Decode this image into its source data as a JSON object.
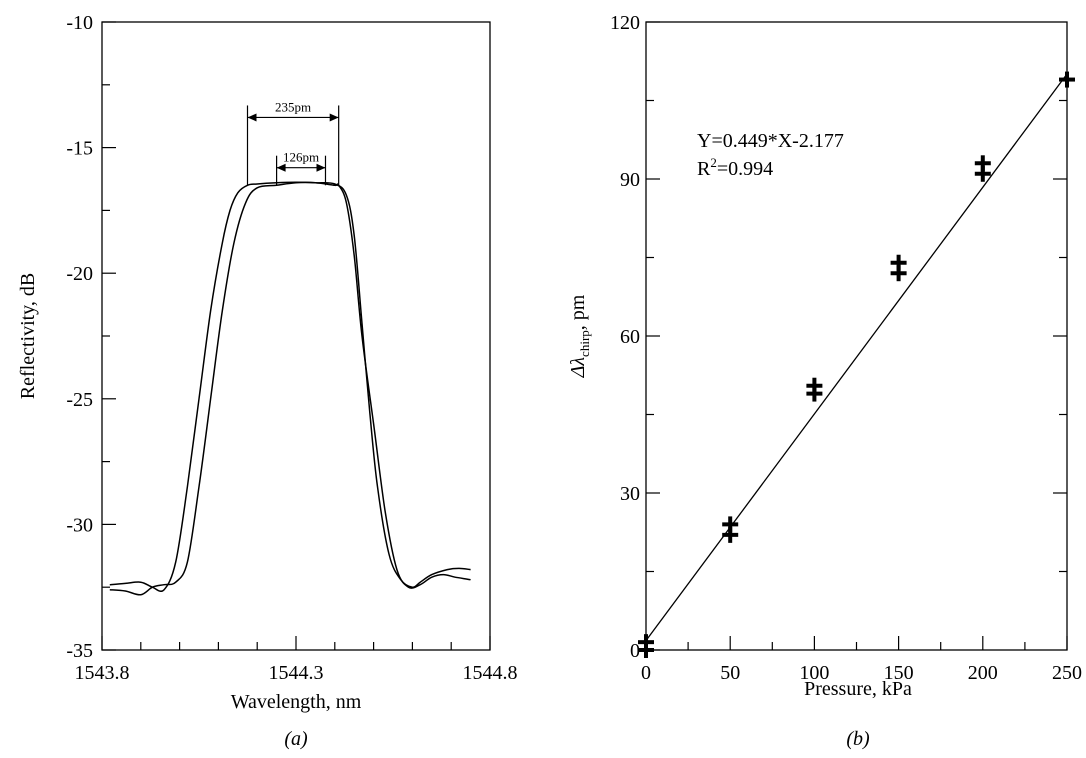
{
  "chart_data": [
    {
      "type": "line",
      "panel_label": "(a)",
      "xlabel": "Wavelength, nm",
      "ylabel": "Reflectivity, dB",
      "xlim": [
        1543.8,
        1544.8
      ],
      "ylim": [
        -35,
        -10
      ],
      "x_ticks": [
        "1543.8",
        "1544.3",
        "1544.8"
      ],
      "y_ticks": [
        "-35",
        "-30",
        "-25",
        "-20",
        "-15",
        "-10"
      ],
      "grid": false,
      "legend": "none",
      "annotations": [
        {
          "text": "235pm",
          "x_from": 1544.175,
          "x_to": 1544.41,
          "y": -13.8
        },
        {
          "text": "126pm",
          "x_from": 1544.25,
          "x_to": 1544.376,
          "y": -15.8
        }
      ],
      "series": [
        {
          "x": [
            1543.82,
            1543.86,
            1543.9,
            1543.93,
            1543.96,
            1543.99,
            1544.02,
            1544.05,
            1544.08,
            1544.11,
            1544.13,
            1544.15,
            1544.175,
            1544.2,
            1544.25,
            1544.3,
            1544.35,
            1544.4,
            1544.43,
            1544.45,
            1544.47,
            1544.49,
            1544.51,
            1544.54,
            1544.57,
            1544.6,
            1544.62,
            1544.65,
            1544.69,
            1544.72,
            1544.75
          ],
          "y": [
            -32.4,
            -32.35,
            -32.3,
            -32.5,
            -32.6,
            -31.5,
            -28.5,
            -25,
            -21.5,
            -18.8,
            -17.5,
            -16.8,
            -16.5,
            -16.45,
            -16.4,
            -16.38,
            -16.4,
            -16.45,
            -16.9,
            -18.5,
            -22,
            -25.5,
            -28.5,
            -31.2,
            -32.2,
            -32.5,
            -32.3,
            -32.0,
            -31.8,
            -31.75,
            -31.8
          ]
        },
        {
          "x": [
            1543.82,
            1543.86,
            1543.9,
            1543.93,
            1543.96,
            1543.99,
            1544.02,
            1544.05,
            1544.08,
            1544.11,
            1544.14,
            1544.17,
            1544.2,
            1544.25,
            1544.3,
            1544.35,
            1544.4,
            1544.41,
            1544.43,
            1544.45,
            1544.47,
            1544.5,
            1544.53,
            1544.56,
            1544.59,
            1544.62,
            1544.65,
            1544.68,
            1544.71,
            1544.75
          ],
          "y": [
            -32.6,
            -32.65,
            -32.8,
            -32.5,
            -32.4,
            -32.3,
            -31.5,
            -28.5,
            -25,
            -21.5,
            -18.8,
            -17.2,
            -16.6,
            -16.5,
            -16.4,
            -16.4,
            -16.5,
            -16.5,
            -17.2,
            -19.3,
            -22.5,
            -26,
            -29.5,
            -31.8,
            -32.5,
            -32.4,
            -32.1,
            -32.0,
            -32.1,
            -32.2
          ]
        }
      ]
    },
    {
      "type": "scatter",
      "panel_label": "(b)",
      "xlabel": "Pressure, kPa",
      "ylabel_main": "Δλ",
      "ylabel_sub": "chirp",
      "ylabel_tail": ", pm",
      "xlim": [
        0,
        250
      ],
      "ylim": [
        0,
        120
      ],
      "x_ticks": [
        "0",
        "50",
        "100",
        "150",
        "200",
        "250"
      ],
      "y_ticks": [
        "0",
        "30",
        "60",
        "90",
        "120"
      ],
      "grid": false,
      "legend": "none",
      "equation": "Y=0.449*X-2.177",
      "r2_prefix": "R",
      "r2_sup": "2",
      "r2_value": "=0.994",
      "fit": {
        "slope": 0.449,
        "intercept": -2.177,
        "x_from": 0,
        "x_to": 250
      },
      "points": [
        {
          "x": 0,
          "y": 0
        },
        {
          "x": 0,
          "y": 1.5
        },
        {
          "x": 50,
          "y": 22
        },
        {
          "x": 50,
          "y": 24
        },
        {
          "x": 100,
          "y": 49
        },
        {
          "x": 100,
          "y": 50.5
        },
        {
          "x": 150,
          "y": 72
        },
        {
          "x": 150,
          "y": 74
        },
        {
          "x": 200,
          "y": 91
        },
        {
          "x": 200,
          "y": 93
        },
        {
          "x": 250,
          "y": 109
        }
      ]
    }
  ]
}
